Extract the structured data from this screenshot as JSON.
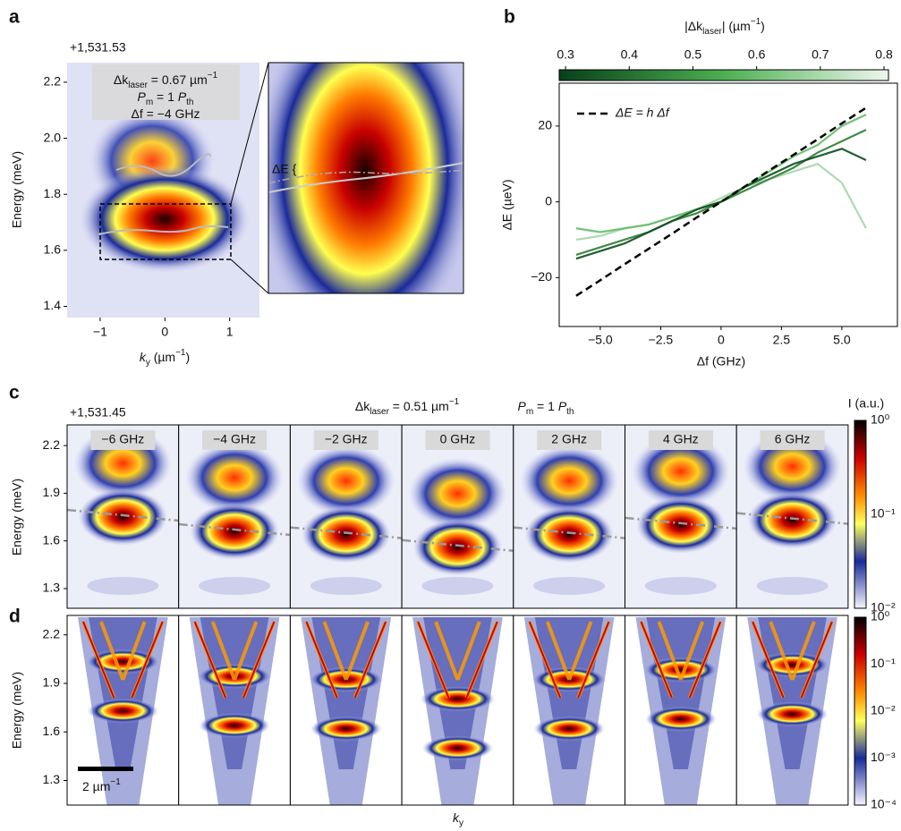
{
  "panel_a": {
    "label": "a",
    "offset": "+1,531.53",
    "annotation": [
      [
        {
          "t": "Δk"
        },
        {
          "sub": "laser"
        },
        {
          "t": " = 0.67 µm"
        },
        {
          "sup": "−1"
        }
      ],
      [
        {
          "i": "P"
        },
        {
          "sub": "m"
        },
        {
          "t": " = 1 "
        },
        {
          "i": "P"
        },
        {
          "sub": "th"
        }
      ],
      [
        {
          "t": "Δf = −4 GHz"
        }
      ]
    ],
    "inset_label": "ΔE {",
    "ylabel": "Energy (meV)",
    "xlabel": [
      {
        "i": "k"
      },
      {
        "sub": "y"
      },
      {
        "t": " (µm"
      },
      {
        "sup": "−1"
      },
      {
        "t": ")"
      }
    ],
    "ylim": [
      1.36,
      2.27
    ],
    "yticks": [
      1.4,
      1.6,
      1.8,
      {
        "value": 2.0,
        "label": "2.0"
      },
      2.2
    ],
    "xlim": [
      -1.51,
      1.46
    ],
    "xticks": [
      {
        "value": -1,
        "label": "−1"
      },
      0,
      1
    ]
  },
  "chart_data": {
    "type": "line",
    "label": "b",
    "x": [
      -6,
      -5,
      -4,
      -3,
      -2,
      -1,
      0,
      1,
      2,
      3,
      4,
      5,
      6
    ],
    "series": [
      {
        "name": "ΔE = h Δf",
        "color": "#000000",
        "dash": true,
        "values": [
          -24.8,
          -20.7,
          -16.5,
          -12.4,
          -8.3,
          -4.1,
          0,
          4.1,
          8.3,
          12.4,
          16.5,
          20.7,
          24.8
        ]
      },
      {
        "color": "#0b4d1e",
        "values": [
          -15,
          -13,
          -11,
          -8,
          -5,
          -2,
          0,
          4,
          7,
          10,
          12,
          14,
          11
        ]
      },
      {
        "color": "#2e7d32",
        "values": [
          -14,
          -12,
          -10,
          -8,
          -5,
          -3,
          0,
          3,
          6,
          9,
          13,
          16,
          19
        ]
      },
      {
        "color": "#66bb6a",
        "values": [
          -7,
          -8,
          -7,
          -6,
          -4,
          -2,
          0,
          4,
          8,
          12,
          15,
          20,
          23
        ]
      },
      {
        "color": "#a5d6a7",
        "values": [
          -10,
          -9,
          -7,
          -6,
          -4,
          -2,
          1,
          4,
          6,
          8,
          10,
          5,
          -7
        ]
      }
    ],
    "xlabel": "Δf (GHz)",
    "ylabel": "ΔE (µeV)",
    "xlim": [
      -6.7,
      7.3
    ],
    "xticks": [
      {
        "value": -5,
        "label": "−5.0"
      },
      {
        "value": -2.5,
        "label": "−2.5"
      },
      0,
      2.5,
      {
        "value": 5,
        "label": "5.0"
      }
    ],
    "ylim": [
      -32.9,
      31.3
    ],
    "yticks": [
      {
        "value": -20,
        "label": "−20"
      },
      0,
      20
    ],
    "colorbar": {
      "label": [
        {
          "t": "|Δk"
        },
        {
          "sub": "laser"
        },
        {
          "t": "| (µm"
        },
        {
          "sup": "−1"
        },
        {
          "t": ")"
        }
      ],
      "xlim": [
        0.29,
        0.807
      ],
      "xticks": [
        0.3,
        0.4,
        0.5,
        0.6,
        0.7,
        0.8
      ],
      "colors": [
        "#08401a",
        "#4caf50",
        "#eef7ee"
      ]
    }
  },
  "panel_c": {
    "label": "c",
    "offset": "+1,531.45",
    "dk": [
      {
        "t": "Δk"
      },
      {
        "sub": "laser"
      },
      {
        "t": " = 0.51 µm"
      },
      {
        "sup": "−1"
      }
    ],
    "power": [
      {
        "i": "P"
      },
      {
        "sub": "m"
      },
      {
        "t": " = 1 "
      },
      {
        "i": "P"
      },
      {
        "sub": "th"
      }
    ],
    "intensity_label": "I (a.u.)",
    "frequencies": [
      "−6 GHz",
      "−4 GHz",
      "−2 GHz",
      "0 GHz",
      "2 GHz",
      "4 GHz",
      "6 GHz"
    ],
    "ylabel": "Energy (meV)",
    "ylim": [
      1.176,
      2.33
    ],
    "yticks": [
      1.3,
      1.6,
      1.9,
      2.2
    ],
    "colorbar_ticks": [
      "10⁰",
      "10⁻¹",
      "10⁻²"
    ]
  },
  "panel_d": {
    "label": "d",
    "ylabel": "Energy (meV)",
    "ylim": [
      1.148,
      2.32
    ],
    "yticks": [
      1.3,
      1.6,
      1.9,
      2.2
    ],
    "scale_bar": [
      {
        "t": "2 µm"
      },
      {
        "sup": "−1"
      }
    ],
    "xlabel": [
      {
        "i": "k"
      },
      {
        "sub": "y"
      }
    ],
    "colorbar_ticks": [
      "10⁰",
      "10⁻¹",
      "10⁻²",
      "10⁻³",
      "10⁻⁴"
    ]
  }
}
